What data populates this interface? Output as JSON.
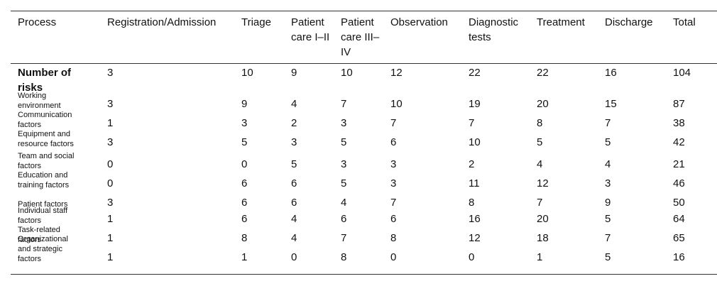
{
  "table": {
    "header": [
      "Process",
      "Registration/Admission",
      "Triage",
      "Patient care I–II",
      "Patient care III–IV",
      "Observation",
      "Diagnostic tests",
      "Treatment",
      "Discharge",
      "Total"
    ],
    "rows": [
      [
        "Number of risks",
        3,
        10,
        9,
        10,
        12,
        22,
        22,
        16,
        104
      ],
      [
        "Working environment",
        3,
        9,
        4,
        7,
        10,
        19,
        20,
        15,
        87
      ],
      [
        "Communication factors",
        1,
        3,
        2,
        3,
        7,
        7,
        8,
        7,
        38
      ],
      [
        "Equipment and resource factors",
        3,
        5,
        3,
        5,
        6,
        10,
        5,
        5,
        42
      ],
      [
        "Team and social factors",
        0,
        0,
        5,
        3,
        3,
        2,
        4,
        4,
        21
      ],
      [
        "Education and training factors",
        0,
        6,
        6,
        5,
        3,
        11,
        12,
        3,
        46
      ],
      [
        "Patient factors",
        3,
        6,
        6,
        4,
        7,
        8,
        7,
        9,
        50
      ],
      [
        "Individual staff factors",
        1,
        6,
        4,
        6,
        6,
        16,
        20,
        5,
        64
      ],
      [
        "Task-related factors",
        1,
        8,
        4,
        7,
        8,
        12,
        18,
        7,
        65
      ],
      [
        "Organizational and strategic factors",
        1,
        1,
        0,
        8,
        0,
        0,
        1,
        5,
        16
      ]
    ]
  }
}
